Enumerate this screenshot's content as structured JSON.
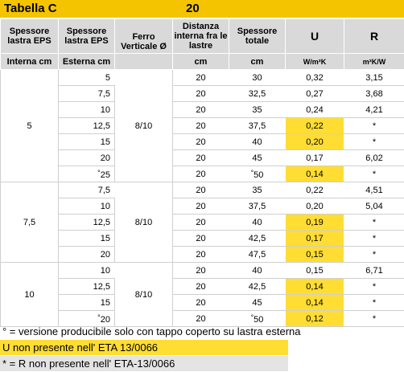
{
  "title": "Tabella C",
  "title_center": "20",
  "headers": {
    "col1": "Spessore lastra EPS",
    "col2": "Spessore lastra EPS",
    "col3": "Ferro Verticale Ø",
    "col4": "Distanza interna fra le lastre",
    "col5": "Spessore totale",
    "col6": "U",
    "col7": "R"
  },
  "units": {
    "col1": "Interna cm",
    "col2": "Esterna cm",
    "col3": "",
    "col4": "cm",
    "col5": "cm",
    "col6": "W/m²K",
    "col7": "m²K/W"
  },
  "groups": [
    {
      "interna": "5",
      "ferro": "8/10",
      "rows": [
        {
          "esterna": "5",
          "distanza": "20",
          "totale": "30",
          "u": "0,32",
          "r": "3,15",
          "u_hl": false,
          "deg_e": false,
          "deg_t": false
        },
        {
          "esterna": "7,5",
          "distanza": "20",
          "totale": "32,5",
          "u": "0,27",
          "r": "3,68",
          "u_hl": false,
          "deg_e": false,
          "deg_t": false
        },
        {
          "esterna": "10",
          "distanza": "20",
          "totale": "35",
          "u": "0,24",
          "r": "4,21",
          "u_hl": false,
          "deg_e": false,
          "deg_t": false
        },
        {
          "esterna": "12,5",
          "distanza": "20",
          "totale": "37,5",
          "u": "0,22",
          "r": "*",
          "u_hl": true,
          "deg_e": false,
          "deg_t": false
        },
        {
          "esterna": "15",
          "distanza": "20",
          "totale": "40",
          "u": "0,20",
          "r": "*",
          "u_hl": true,
          "deg_e": false,
          "deg_t": false
        },
        {
          "esterna": "20",
          "distanza": "20",
          "totale": "45",
          "u": "0,17",
          "r": "6,02",
          "u_hl": false,
          "deg_e": false,
          "deg_t": false
        },
        {
          "esterna": "25",
          "distanza": "20",
          "totale": "50",
          "u": "0,14",
          "r": "*",
          "u_hl": true,
          "deg_e": true,
          "deg_t": true
        }
      ]
    },
    {
      "interna": "7,5",
      "ferro": "8/10",
      "rows": [
        {
          "esterna": "7,5",
          "distanza": "20",
          "totale": "35",
          "u": "0,22",
          "r": "4,51",
          "u_hl": false,
          "deg_e": false,
          "deg_t": false
        },
        {
          "esterna": "10",
          "distanza": "20",
          "totale": "37,5",
          "u": "0,20",
          "r": "5,04",
          "u_hl": false,
          "deg_e": false,
          "deg_t": false
        },
        {
          "esterna": "12,5",
          "distanza": "20",
          "totale": "40",
          "u": "0,19",
          "r": "*",
          "u_hl": true,
          "deg_e": false,
          "deg_t": false
        },
        {
          "esterna": "15",
          "distanza": "20",
          "totale": "42,5",
          "u": "0,17",
          "r": "*",
          "u_hl": true,
          "deg_e": false,
          "deg_t": false
        },
        {
          "esterna": "20",
          "distanza": "20",
          "totale": "47,5",
          "u": "0,15",
          "r": "*",
          "u_hl": true,
          "deg_e": false,
          "deg_t": false
        }
      ]
    },
    {
      "interna": "10",
      "ferro": "8/10",
      "rows": [
        {
          "esterna": "10",
          "distanza": "20",
          "totale": "40",
          "u": "0,15",
          "r": "6,71",
          "u_hl": false,
          "deg_e": false,
          "deg_t": false
        },
        {
          "esterna": "12,5",
          "distanza": "20",
          "totale": "42,5",
          "u": "0,14",
          "r": "*",
          "u_hl": true,
          "deg_e": false,
          "deg_t": false
        },
        {
          "esterna": "15",
          "distanza": "20",
          "totale": "45",
          "u": "0,14",
          "r": "*",
          "u_hl": true,
          "deg_e": false,
          "deg_t": false
        },
        {
          "esterna": "20",
          "distanza": "20",
          "totale": "50",
          "u": "0,12",
          "r": "*",
          "u_hl": true,
          "deg_e": true,
          "deg_t": true
        }
      ]
    }
  ],
  "degree_mark": "°",
  "notes": {
    "note1": "° =  versione producibile solo con tappo coperto su lastra esterna",
    "note2": "U  non presente nell' ETA 13/0066",
    "note3": "* = R non presente nell' ETA-13/0066"
  },
  "colors": {
    "accent_yellow": "#f5c400",
    "highlight_yellow": "#ffdd33",
    "header_gray": "#d9d9d9",
    "note_gray": "#e4e4e4"
  }
}
